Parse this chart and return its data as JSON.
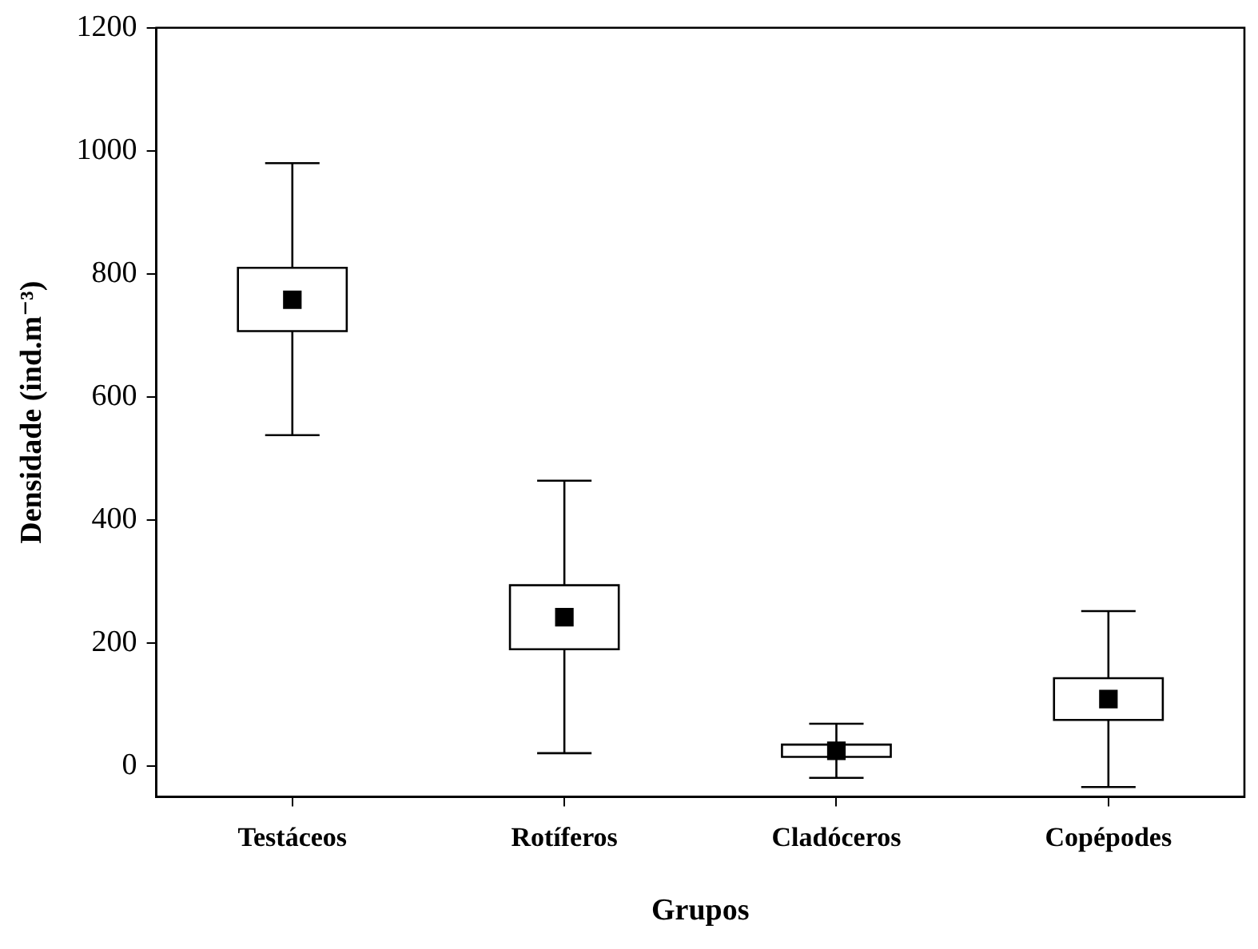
{
  "chart_data": {
    "type": "box",
    "xlabel": "Grupos",
    "ylabel": "Densidade (ind.m⁻³)",
    "categories": [
      "Testáceos",
      "Rotíferos",
      "Cladóceros",
      "Copépodes"
    ],
    "boxes": [
      {
        "low": 538,
        "q1": 707,
        "median": 758,
        "q3": 810,
        "high": 980
      },
      {
        "low": 21,
        "q1": 190,
        "median": 242,
        "q3": 294,
        "high": 464
      },
      {
        "low": -19,
        "q1": 15,
        "median": 25,
        "q3": 35,
        "high": 69
      },
      {
        "low": -34,
        "q1": 75,
        "median": 109,
        "q3": 143,
        "high": 252
      }
    ],
    "color": "#000000",
    "marker": "square",
    "ylim": [
      -50,
      1200
    ],
    "yticks": [
      0,
      200,
      400,
      600,
      800,
      1000,
      1200
    ],
    "grid": false,
    "legend": false
  }
}
